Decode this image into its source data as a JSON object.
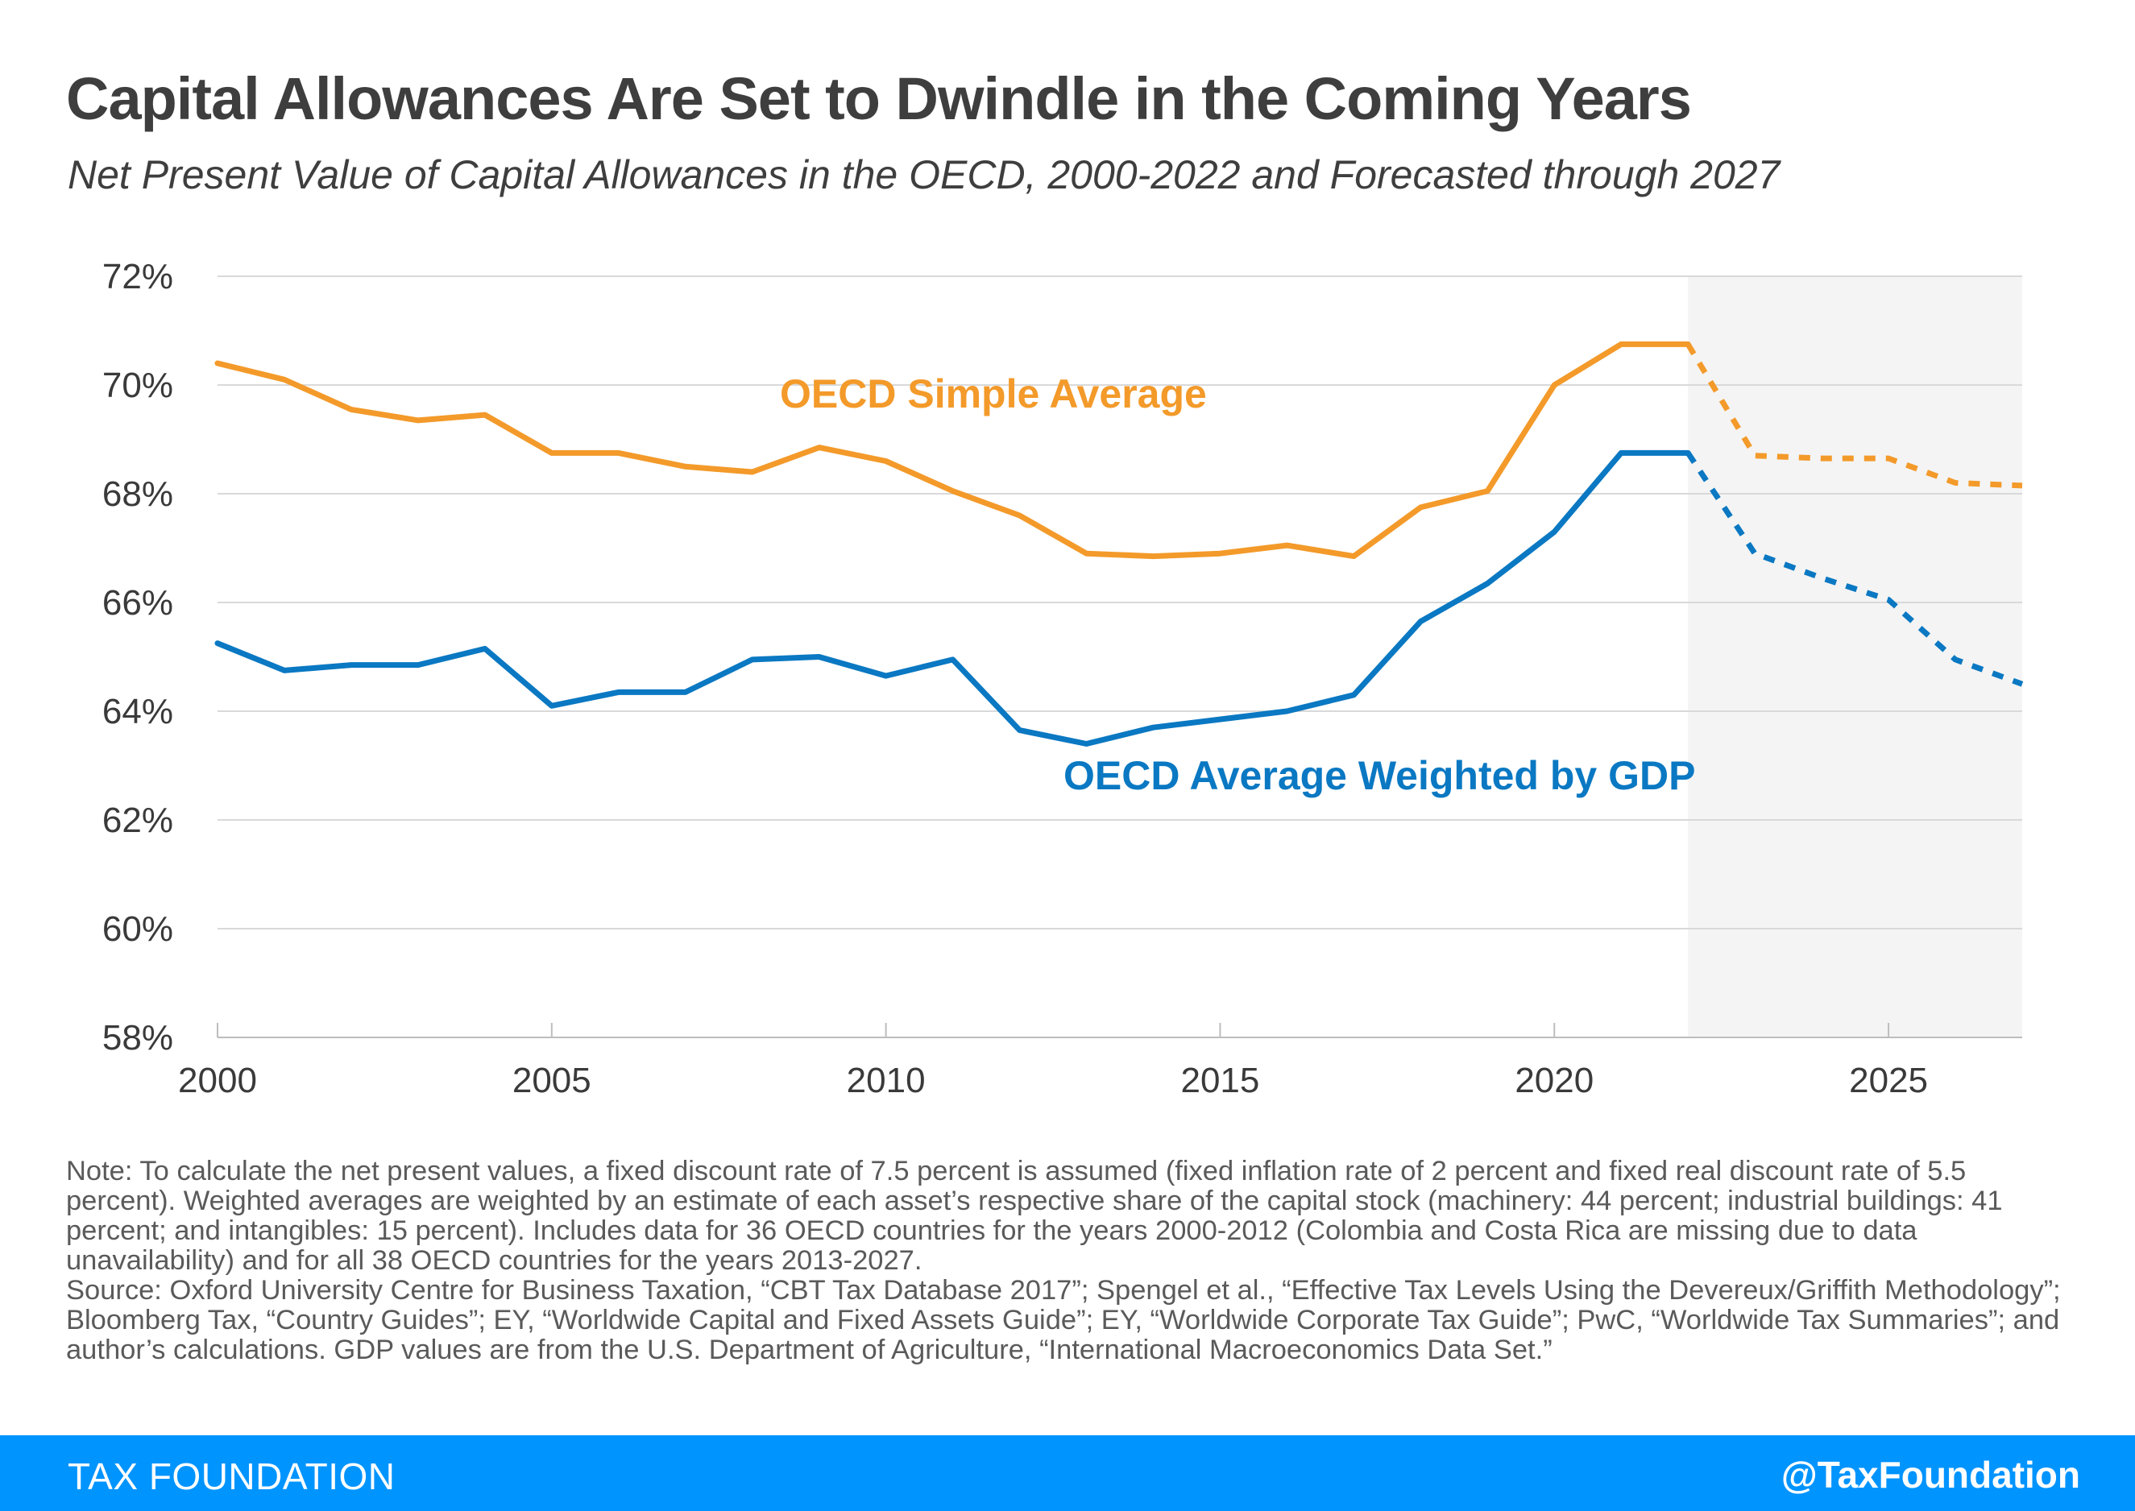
{
  "header": {
    "title": "Capital Allowances Are Set to Dwindle in the Coming Years",
    "subtitle": "Net Present Value of Capital Allowances in the OECD, 2000-2022 and Forecasted through 2027"
  },
  "chart_data": {
    "type": "line",
    "title": "Capital Allowances Are Set to Dwindle in the Coming Years",
    "subtitle": "Net Present Value of Capital Allowances in the OECD, 2000-2022 and Forecasted through 2027",
    "xlim": [
      2000,
      2027
    ],
    "ylim": [
      58,
      72
    ],
    "x_ticks": [
      2000,
      2005,
      2010,
      2015,
      2020,
      2025
    ],
    "y_ticks": [
      58,
      60,
      62,
      64,
      66,
      68,
      70,
      72
    ],
    "y_tick_labels": [
      "58%",
      "60%",
      "62%",
      "64%",
      "66%",
      "68%",
      "70%",
      "72%"
    ],
    "grid": "horizontal",
    "forecast_start": 2022,
    "forecast_end": 2027,
    "forecast_shading_color": "#f4f4f4",
    "series": [
      {
        "name": "OECD Simple Average",
        "color": "#f39a2a",
        "x": [
          2000,
          2001,
          2002,
          2003,
          2004,
          2005,
          2006,
          2007,
          2008,
          2009,
          2010,
          2011,
          2012,
          2013,
          2014,
          2015,
          2016,
          2017,
          2018,
          2019,
          2020,
          2021,
          2022,
          2023,
          2024,
          2025,
          2026,
          2027
        ],
        "values": [
          70.4,
          70.1,
          69.55,
          69.35,
          69.45,
          68.75,
          68.75,
          68.5,
          68.4,
          68.85,
          68.6,
          68.05,
          67.6,
          66.9,
          66.85,
          66.9,
          67.05,
          66.85,
          67.75,
          68.05,
          70.0,
          70.75,
          70.75,
          68.7,
          68.65,
          68.65,
          68.2,
          68.15
        ]
      },
      {
        "name": "OECD Average Weighted by GDP",
        "color": "#0a78c2",
        "x": [
          2000,
          2001,
          2002,
          2003,
          2004,
          2005,
          2006,
          2007,
          2008,
          2009,
          2010,
          2011,
          2012,
          2013,
          2014,
          2015,
          2016,
          2017,
          2018,
          2019,
          2020,
          2021,
          2022,
          2023,
          2024,
          2025,
          2026,
          2027
        ],
        "values": [
          65.25,
          64.75,
          64.85,
          64.85,
          65.15,
          64.1,
          64.35,
          64.35,
          64.95,
          65.0,
          64.65,
          64.95,
          63.65,
          63.4,
          63.7,
          63.85,
          64.0,
          64.3,
          65.65,
          66.35,
          67.3,
          68.75,
          68.75,
          66.9,
          66.45,
          66.05,
          64.95,
          64.5
        ]
      }
    ],
    "legend": "inline labels"
  },
  "note": {
    "note_text": "Note: To calculate the net present values, a fixed discount rate of 7.5 percent is assumed (fixed inflation rate of 2 percent and fixed real discount rate of 5.5 percent). Weighted averages are weighted by an estimate of each asset’s respective share of the capital stock (machinery: 44 percent; industrial buildings: 41 percent; and intangibles: 15 percent). Includes data for 36 OECD countries for the years 2000-2012 (Colombia and Costa Rica are missing due to data unavailability) and for all 38 OECD countries for the years 2013-2027.",
    "source_text": "Source: Oxford University Centre for Business Taxation, “CBT Tax Database 2017”; Spengel et al., “Effective Tax Levels Using the Devereux/Griffith Methodology”; Bloomberg Tax, “Country Guides”; EY, “Worldwide Capital and Fixed Assets Guide”; EY, “Worldwide Corporate Tax Guide”; PwC, “Worldwide Tax Summaries”; and author’s calculations. GDP values are from the U.S. Department of Agriculture, “International Macroeconomics Data Set.”"
  },
  "footer": {
    "brand": "TAX FOUNDATION",
    "handle": "@TaxFoundation",
    "color": "#0094ff"
  }
}
